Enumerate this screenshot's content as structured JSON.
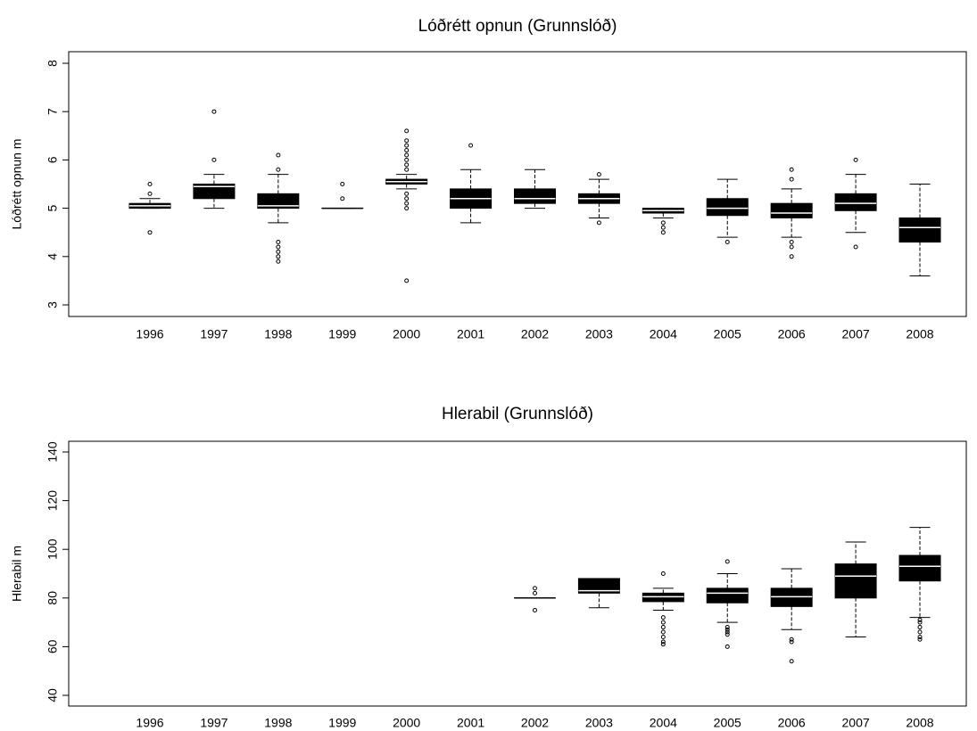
{
  "chart_data": [
    {
      "type": "box",
      "title": "Lóðrétt opnun (Grunnslóð)",
      "ylabel": "Lóðrétt opnun m",
      "categories": [
        "1996",
        "1997",
        "1998",
        "1999",
        "2000",
        "2001",
        "2002",
        "2003",
        "2004",
        "2005",
        "2006",
        "2007",
        "2008"
      ],
      "ylim": [
        3,
        8
      ],
      "yticks": [
        3,
        4,
        5,
        6,
        7,
        8
      ],
      "color": "#000000",
      "median_color": "#ffffff",
      "boxes": [
        {
          "min": 5.0,
          "q1": 5.0,
          "median": 5.05,
          "q3": 5.1,
          "max": 5.2,
          "outliers": [
            5.5,
            5.3,
            4.5
          ]
        },
        {
          "min": 5.0,
          "q1": 5.2,
          "median": 5.45,
          "q3": 5.5,
          "max": 5.7,
          "outliers": [
            7.0,
            6.0
          ]
        },
        {
          "min": 4.7,
          "q1": 5.0,
          "median": 5.05,
          "q3": 5.3,
          "max": 5.7,
          "outliers": [
            6.1,
            5.8,
            4.3,
            4.2,
            4.1,
            4.0,
            3.9
          ]
        },
        {
          "min": 5.0,
          "q1": 5.0,
          "median": 5.0,
          "q3": 5.0,
          "max": 5.0,
          "outliers": [
            5.5,
            5.2
          ]
        },
        {
          "min": 5.4,
          "q1": 5.5,
          "median": 5.55,
          "q3": 5.6,
          "max": 5.7,
          "outliers": [
            6.6,
            6.4,
            6.3,
            6.2,
            6.1,
            6.0,
            5.9,
            5.8,
            5.3,
            5.2,
            5.1,
            5.0,
            3.5
          ]
        },
        {
          "min": 4.7,
          "q1": 5.0,
          "median": 5.2,
          "q3": 5.4,
          "max": 5.8,
          "outliers": [
            6.3
          ]
        },
        {
          "min": 5.0,
          "q1": 5.1,
          "median": 5.2,
          "q3": 5.4,
          "max": 5.8,
          "outliers": []
        },
        {
          "min": 4.8,
          "q1": 5.1,
          "median": 5.2,
          "q3": 5.3,
          "max": 5.6,
          "outliers": [
            5.7,
            4.7
          ]
        },
        {
          "min": 4.8,
          "q1": 4.9,
          "median": 4.95,
          "q3": 5.0,
          "max": 5.0,
          "outliers": [
            4.7,
            4.6,
            4.5
          ]
        },
        {
          "min": 4.4,
          "q1": 4.85,
          "median": 5.0,
          "q3": 5.2,
          "max": 5.6,
          "outliers": [
            4.3
          ]
        },
        {
          "min": 4.4,
          "q1": 4.8,
          "median": 4.9,
          "q3": 5.1,
          "max": 5.4,
          "outliers": [
            5.8,
            5.6,
            4.3,
            4.2,
            4.0
          ]
        },
        {
          "min": 4.5,
          "q1": 4.95,
          "median": 5.1,
          "q3": 5.3,
          "max": 5.7,
          "outliers": [
            6.0,
            4.2
          ]
        },
        {
          "min": 3.6,
          "q1": 4.3,
          "median": 4.6,
          "q3": 4.8,
          "max": 5.5,
          "outliers": []
        }
      ]
    },
    {
      "type": "box",
      "title": "Hlerabil (Grunnslóð)",
      "ylabel": "Hlerabil m",
      "categories": [
        "1996",
        "1997",
        "1998",
        "1999",
        "2000",
        "2001",
        "2002",
        "2003",
        "2004",
        "2005",
        "2006",
        "2007",
        "2008"
      ],
      "ylim": [
        40,
        140
      ],
      "yticks": [
        40,
        60,
        80,
        100,
        120,
        140
      ],
      "color": "#000000",
      "median_color": "#ffffff",
      "boxes": [
        null,
        null,
        null,
        null,
        null,
        null,
        {
          "min": 80,
          "q1": 80,
          "median": 80,
          "q3": 80,
          "max": 80,
          "outliers": [
            84,
            82,
            75
          ]
        },
        {
          "min": 76,
          "q1": 82,
          "median": 83,
          "q3": 88,
          "max": 88,
          "outliers": []
        },
        {
          "min": 75,
          "q1": 78.5,
          "median": 80.5,
          "q3": 82,
          "max": 84,
          "outliers": [
            90,
            72,
            70,
            68,
            66,
            64,
            62,
            61
          ]
        },
        {
          "min": 70,
          "q1": 78,
          "median": 82,
          "q3": 84,
          "max": 90,
          "outliers": [
            95,
            68,
            67,
            66,
            65,
            60
          ]
        },
        {
          "min": 67,
          "q1": 76.5,
          "median": 80.5,
          "q3": 84,
          "max": 92,
          "outliers": [
            63,
            62,
            54
          ]
        },
        {
          "min": 64,
          "q1": 80,
          "median": 89,
          "q3": 94,
          "max": 103,
          "outliers": []
        },
        {
          "min": 72,
          "q1": 87,
          "median": 93,
          "q3": 97.5,
          "max": 109,
          "outliers": [
            71,
            70,
            68,
            66,
            64,
            63
          ]
        }
      ]
    }
  ]
}
